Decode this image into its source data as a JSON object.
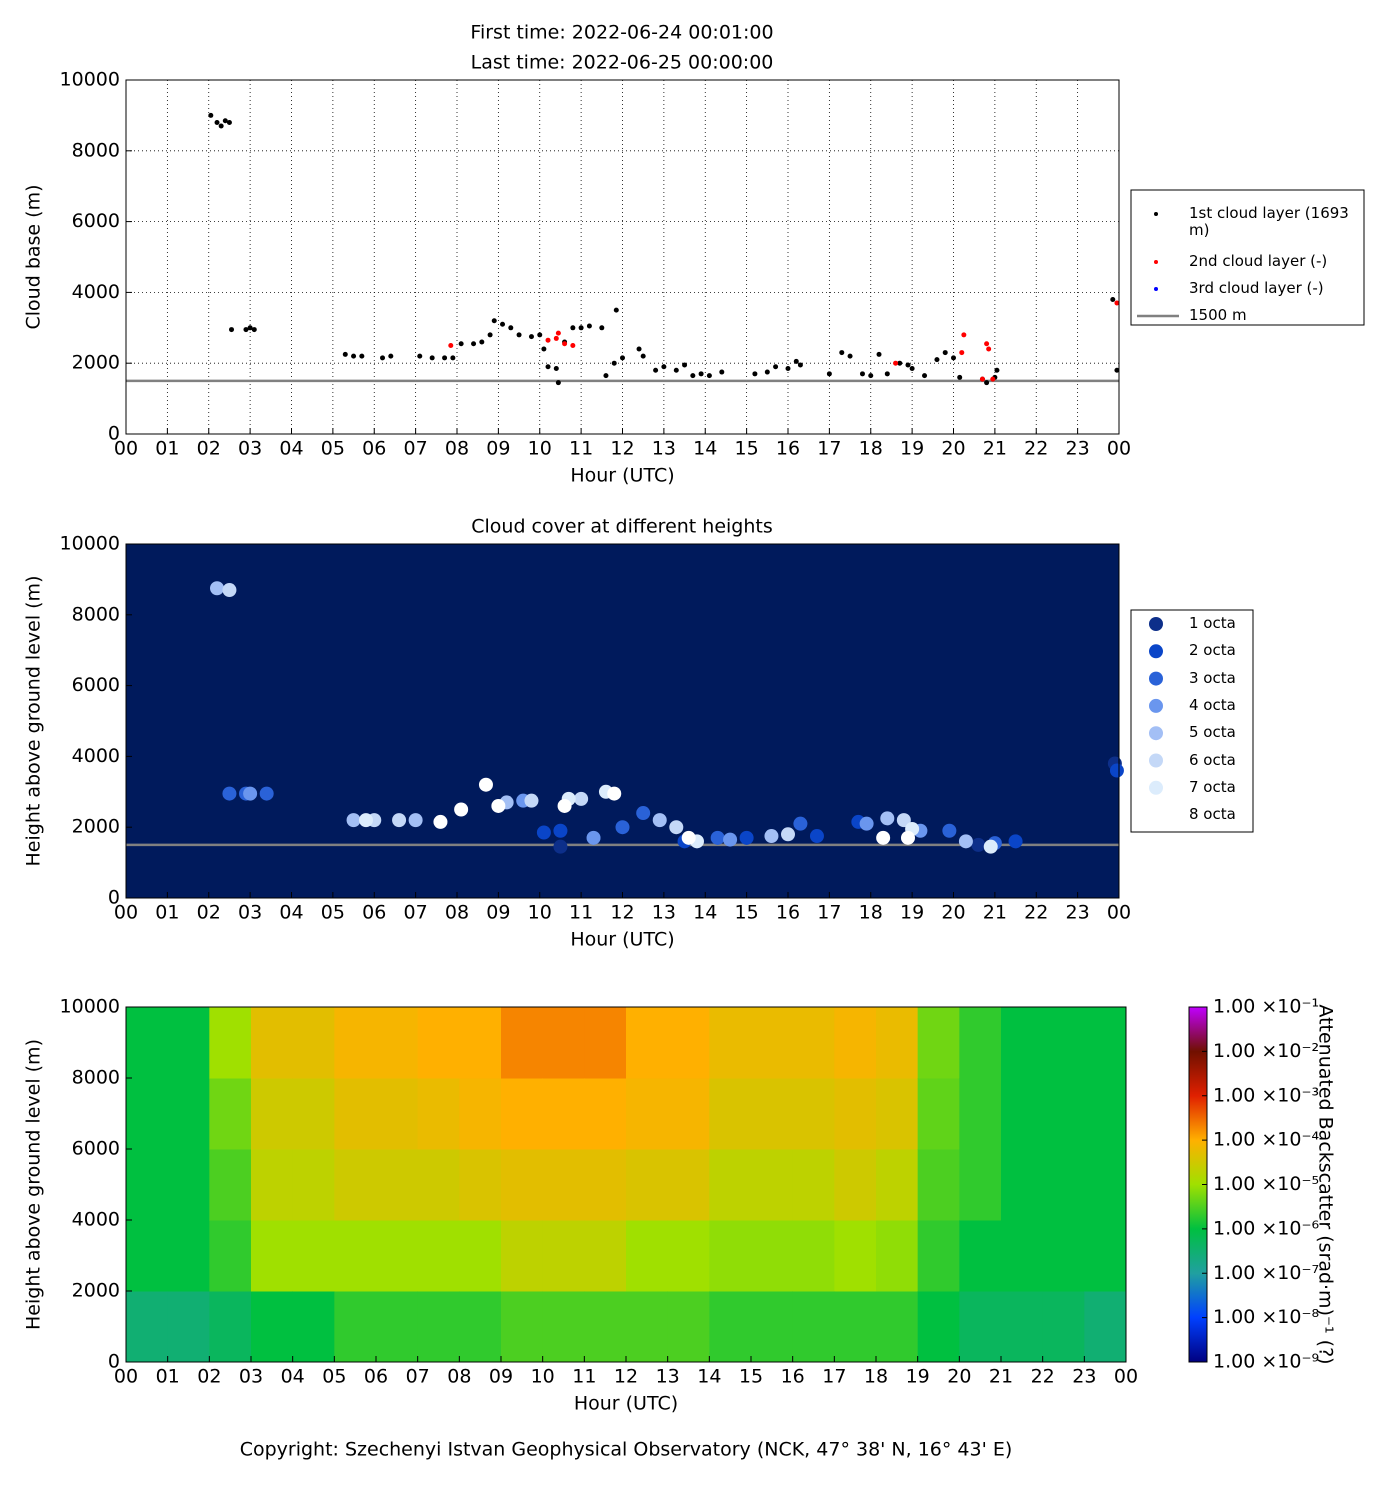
{
  "footer": "Copyright: Szechenyi Istvan Geophysical Observatory (NCK, 47° 38' N, 16° 43' E)",
  "chart_data": [
    {
      "type": "scatter",
      "title": "First time: 2022-06-24 00:01:00",
      "subtitle": "Last time: 2022-06-25 00:00:00",
      "x_label": "Hour (UTC)",
      "y_label": "Cloud base (m)",
      "xlim": [
        0,
        24
      ],
      "ylim": [
        0,
        10000
      ],
      "grid": true,
      "xticks": [
        {
          "value": 0,
          "label": "00"
        },
        {
          "value": 1,
          "label": "01"
        },
        {
          "value": 2,
          "label": "02"
        },
        {
          "value": 3,
          "label": "03"
        },
        {
          "value": 4,
          "label": "04"
        },
        {
          "value": 5,
          "label": "05"
        },
        {
          "value": 6,
          "label": "06"
        },
        {
          "value": 7,
          "label": "07"
        },
        {
          "value": 8,
          "label": "08"
        },
        {
          "value": 9,
          "label": "09"
        },
        {
          "value": 10,
          "label": "10"
        },
        {
          "value": 11,
          "label": "11"
        },
        {
          "value": 12,
          "label": "12"
        },
        {
          "value": 13,
          "label": "13"
        },
        {
          "value": 14,
          "label": "14"
        },
        {
          "value": 15,
          "label": "15"
        },
        {
          "value": 16,
          "label": "16"
        },
        {
          "value": 17,
          "label": "17"
        },
        {
          "value": 18,
          "label": "18"
        },
        {
          "value": 19,
          "label": "19"
        },
        {
          "value": 20,
          "label": "20"
        },
        {
          "value": 21,
          "label": "21"
        },
        {
          "value": 22,
          "label": "22"
        },
        {
          "value": 23,
          "label": "23"
        },
        {
          "value": 24,
          "label": "00"
        }
      ],
      "yticks": [
        0,
        2000,
        4000,
        6000,
        8000,
        10000
      ],
      "marker_size": 2.5,
      "series": [
        {
          "name": "1st cloud layer (1693 m)",
          "color": "#000000",
          "x": [
            2.05,
            2.2,
            2.3,
            2.4,
            2.5,
            2.55,
            2.9,
            3.0,
            3.1,
            5.3,
            5.5,
            5.7,
            6.2,
            6.4,
            7.1,
            7.4,
            7.7,
            7.9,
            8.1,
            8.4,
            8.6,
            8.8,
            8.9,
            9.1,
            9.3,
            9.5,
            9.8,
            10.0,
            10.1,
            10.2,
            10.4,
            10.45,
            10.6,
            10.8,
            11.0,
            11.2,
            11.5,
            11.6,
            11.8,
            11.85,
            12.0,
            12.4,
            12.5,
            12.8,
            13.0,
            13.3,
            13.5,
            13.7,
            13.9,
            14.1,
            14.4,
            15.2,
            15.5,
            15.7,
            16.0,
            16.2,
            16.3,
            17.0,
            17.3,
            17.5,
            17.8,
            18.0,
            18.2,
            18.4,
            18.7,
            18.9,
            19.0,
            19.3,
            19.6,
            19.8,
            20.0,
            20.15,
            20.7,
            20.8,
            21.0,
            21.05,
            23.85,
            23.95
          ],
          "values": [
            9000,
            8800,
            8700,
            8850,
            8800,
            2950,
            2950,
            3000,
            2950,
            2250,
            2200,
            2200,
            2150,
            2200,
            2200,
            2150,
            2150,
            2150,
            2550,
            2550,
            2600,
            2800,
            3200,
            3100,
            3000,
            2800,
            2750,
            2800,
            2400,
            1900,
            1850,
            1450,
            2600,
            3000,
            3000,
            3050,
            3000,
            1650,
            2000,
            3500,
            2150,
            2400,
            2200,
            1800,
            1900,
            1800,
            1950,
            1650,
            1700,
            1650,
            1750,
            1700,
            1750,
            1900,
            1850,
            2050,
            1950,
            1700,
            2300,
            2200,
            1700,
            1650,
            2250,
            1700,
            2000,
            1950,
            1850,
            1650,
            2100,
            2300,
            2150,
            1600,
            1550,
            1450,
            1600,
            1800,
            3800,
            1800
          ]
        },
        {
          "name": "2nd cloud layer (-)",
          "color": "#ff0000",
          "x": [
            7.85,
            10.2,
            10.4,
            10.45,
            10.6,
            10.8,
            18.6,
            20.2,
            20.25,
            20.7,
            20.8,
            20.85,
            20.95,
            23.95
          ],
          "values": [
            2500,
            2650,
            2700,
            2850,
            2550,
            2500,
            2000,
            2300,
            2800,
            1550,
            2550,
            2400,
            1550,
            3700
          ]
        },
        {
          "name": "3rd cloud layer (-)",
          "color": "#0000ff",
          "x": [],
          "values": []
        }
      ],
      "hlines": [
        {
          "name": "1500 m",
          "value": 1500,
          "color": "#808080"
        }
      ]
    },
    {
      "type": "scatter",
      "title": "Cloud cover at different heights",
      "x_label": "Hour (UTC)",
      "y_label": "Height above ground level (m)",
      "xlim": [
        0,
        24
      ],
      "ylim": [
        0,
        10000
      ],
      "grid": false,
      "background": "#001a5c",
      "xticks": [
        {
          "value": 0,
          "label": "00"
        },
        {
          "value": 1,
          "label": "01"
        },
        {
          "value": 2,
          "label": "02"
        },
        {
          "value": 3,
          "label": "03"
        },
        {
          "value": 4,
          "label": "04"
        },
        {
          "value": 5,
          "label": "05"
        },
        {
          "value": 6,
          "label": "06"
        },
        {
          "value": 7,
          "label": "07"
        },
        {
          "value": 8,
          "label": "08"
        },
        {
          "value": 9,
          "label": "09"
        },
        {
          "value": 10,
          "label": "10"
        },
        {
          "value": 11,
          "label": "11"
        },
        {
          "value": 12,
          "label": "12"
        },
        {
          "value": 13,
          "label": "13"
        },
        {
          "value": 14,
          "label": "14"
        },
        {
          "value": 15,
          "label": "15"
        },
        {
          "value": 16,
          "label": "16"
        },
        {
          "value": 17,
          "label": "17"
        },
        {
          "value": 18,
          "label": "18"
        },
        {
          "value": 19,
          "label": "19"
        },
        {
          "value": 20,
          "label": "20"
        },
        {
          "value": 21,
          "label": "21"
        },
        {
          "value": 22,
          "label": "22"
        },
        {
          "value": 23,
          "label": "23"
        },
        {
          "value": 24,
          "label": "00"
        }
      ],
      "yticks": [
        0,
        2000,
        4000,
        6000,
        8000,
        10000
      ],
      "marker_size": 7,
      "series": [
        {
          "name": "1 octa",
          "color": "#0d2f8a",
          "x": [
            10.5,
            23.9,
            20.6
          ],
          "values": [
            1450,
            3800,
            1500
          ]
        },
        {
          "name": "2 octa",
          "color": "#0a45c8",
          "x": [
            10.1,
            10.5,
            13.5,
            15.0,
            16.7,
            17.7,
            21.5,
            23.95
          ],
          "values": [
            1850,
            1900,
            1600,
            1700,
            1750,
            2150,
            1600,
            3600
          ]
        },
        {
          "name": "3 octa",
          "color": "#2a62d8",
          "x": [
            2.5,
            2.9,
            3.4,
            12.0,
            12.5,
            14.3,
            16.3,
            19.9,
            21.0
          ],
          "values": [
            2950,
            2950,
            2950,
            2000,
            2400,
            1700,
            2100,
            1900,
            1550
          ]
        },
        {
          "name": "4 octa",
          "color": "#6a96ee",
          "x": [
            3.0,
            9.6,
            11.3,
            14.6,
            17.9,
            19.2
          ],
          "values": [
            2950,
            2750,
            1700,
            1650,
            2100,
            1900
          ]
        },
        {
          "name": "5 octa",
          "color": "#a3bff5",
          "x": [
            2.2,
            5.5,
            7.0,
            9.2,
            12.9,
            15.6,
            18.4,
            20.3
          ],
          "values": [
            8750,
            2200,
            2200,
            2700,
            2200,
            1750,
            2250,
            1600
          ]
        },
        {
          "name": "6 octa",
          "color": "#c4d8f7",
          "x": [
            2.5,
            6.0,
            6.6,
            9.8,
            11.0,
            13.3,
            16.0,
            18.8
          ],
          "values": [
            8700,
            2200,
            2200,
            2750,
            2800,
            2000,
            1800,
            2200
          ]
        },
        {
          "name": "7 octa",
          "color": "#dcecfc",
          "x": [
            5.8,
            10.7,
            11.6,
            13.8,
            19.0,
            20.9
          ],
          "values": [
            2200,
            2800,
            3000,
            1600,
            1950,
            1450
          ]
        },
        {
          "name": "8 octa",
          "color": "#ffffff",
          "x": [
            7.6,
            8.1,
            8.7,
            9.0,
            10.6,
            11.8,
            13.6,
            18.3,
            18.9
          ],
          "values": [
            2150,
            2500,
            3200,
            2600,
            2600,
            2950,
            1700,
            1700,
            1700
          ]
        }
      ],
      "hlines": [
        {
          "value": 1500,
          "color": "#808080"
        }
      ]
    },
    {
      "type": "heatmap",
      "x_label": "Hour (UTC)",
      "y_label": "Height above ground level (m)",
      "colorbar_label": "Attenuated Backscatter (srad·m)⁻¹ (?)",
      "xlim": [
        0,
        24
      ],
      "ylim": [
        0,
        10000
      ],
      "zlim": [
        1e-09,
        0.1
      ],
      "log_z": true,
      "xticks": [
        {
          "value": 0,
          "label": "00"
        },
        {
          "value": 1,
          "label": "01"
        },
        {
          "value": 2,
          "label": "02"
        },
        {
          "value": 3,
          "label": "03"
        },
        {
          "value": 4,
          "label": "04"
        },
        {
          "value": 5,
          "label": "05"
        },
        {
          "value": 6,
          "label": "06"
        },
        {
          "value": 7,
          "label": "07"
        },
        {
          "value": 8,
          "label": "08"
        },
        {
          "value": 9,
          "label": "09"
        },
        {
          "value": 10,
          "label": "10"
        },
        {
          "value": 11,
          "label": "11"
        },
        {
          "value": 12,
          "label": "12"
        },
        {
          "value": 13,
          "label": "13"
        },
        {
          "value": 14,
          "label": "14"
        },
        {
          "value": 15,
          "label": "15"
        },
        {
          "value": 16,
          "label": "16"
        },
        {
          "value": 17,
          "label": "17"
        },
        {
          "value": 18,
          "label": "18"
        },
        {
          "value": 19,
          "label": "19"
        },
        {
          "value": 20,
          "label": "20"
        },
        {
          "value": 21,
          "label": "21"
        },
        {
          "value": 22,
          "label": "22"
        },
        {
          "value": 23,
          "label": "23"
        },
        {
          "value": 24,
          "label": "00"
        }
      ],
      "yticks": [
        0,
        2000,
        4000,
        6000,
        8000,
        10000
      ],
      "zticks": [
        {
          "value": 1e-09,
          "label": "1.00 ×10⁻⁹"
        },
        {
          "value": 1e-08,
          "label": "1.00 ×10⁻⁸"
        },
        {
          "value": 1e-07,
          "label": "1.00 ×10⁻⁷"
        },
        {
          "value": 1e-06,
          "label": "1.00 ×10⁻⁶"
        },
        {
          "value": 1e-05,
          "label": "1.00 ×10⁻⁵"
        },
        {
          "value": 0.0001,
          "label": "1.00 ×10⁻⁴"
        },
        {
          "value": 0.001,
          "label": "1.00 ×10⁻³"
        },
        {
          "value": 0.01,
          "label": "1.00 ×10⁻²"
        },
        {
          "value": 0.1,
          "label": "1.00 ×10⁻¹"
        }
      ],
      "colormap": [
        "#000080",
        "#0040ff",
        "#20a0a0",
        "#00c040",
        "#a0e000",
        "#ffb000",
        "#e02000",
        "#701000",
        "#c000ff"
      ],
      "xbins": [
        0,
        1,
        2,
        3,
        4,
        5,
        6,
        7,
        8,
        9,
        10,
        11,
        12,
        13,
        14,
        15,
        16,
        17,
        18,
        19,
        20,
        21,
        22,
        23,
        24
      ],
      "ybins": [
        0,
        2000,
        4000,
        6000,
        8000,
        10000
      ],
      "z": [
        [
          3e-07,
          1e-06,
          1e-06,
          1e-06,
          1e-06
        ],
        [
          3e-07,
          1e-06,
          1e-06,
          1e-06,
          1e-06
        ],
        [
          5e-07,
          2e-06,
          3e-06,
          5e-06,
          1e-05
        ],
        [
          1e-06,
          1e-05,
          2e-05,
          3e-05,
          5e-05
        ],
        [
          1e-06,
          1e-05,
          2e-05,
          3e-05,
          5e-05
        ],
        [
          2e-06,
          1e-05,
          3e-05,
          5e-05,
          8e-05
        ],
        [
          2e-06,
          1e-05,
          3e-05,
          5e-05,
          8e-05
        ],
        [
          2e-06,
          1e-05,
          3e-05,
          6e-05,
          0.0001
        ],
        [
          2e-06,
          1e-05,
          4e-05,
          8e-05,
          0.0001
        ],
        [
          3e-06,
          2e-05,
          5e-05,
          0.0001,
          0.0002
        ],
        [
          3e-06,
          2e-05,
          5e-05,
          0.0001,
          0.0002
        ],
        [
          3e-06,
          2e-05,
          5e-05,
          0.0001,
          0.0002
        ],
        [
          3e-06,
          1e-05,
          4e-05,
          8e-05,
          0.0001
        ],
        [
          3e-06,
          1e-05,
          4e-05,
          8e-05,
          0.0001
        ],
        [
          2e-06,
          8e-06,
          2e-05,
          4e-05,
          6e-05
        ],
        [
          2e-06,
          8e-06,
          2e-05,
          4e-05,
          6e-05
        ],
        [
          2e-06,
          8e-06,
          2e-05,
          4e-05,
          6e-05
        ],
        [
          2e-06,
          1e-05,
          3e-05,
          5e-05,
          8e-05
        ],
        [
          2e-06,
          8e-06,
          2e-05,
          4e-05,
          6e-05
        ],
        [
          1e-06,
          2e-06,
          3e-06,
          4e-06,
          5e-06
        ],
        [
          5e-07,
          1e-06,
          2e-06,
          2e-06,
          2e-06
        ],
        [
          5e-07,
          1e-06,
          1e-06,
          1e-06,
          1e-06
        ],
        [
          5e-07,
          1e-06,
          1e-06,
          1e-06,
          1e-06
        ],
        [
          3e-07,
          1e-06,
          1e-06,
          1e-06,
          1e-06
        ]
      ]
    }
  ]
}
